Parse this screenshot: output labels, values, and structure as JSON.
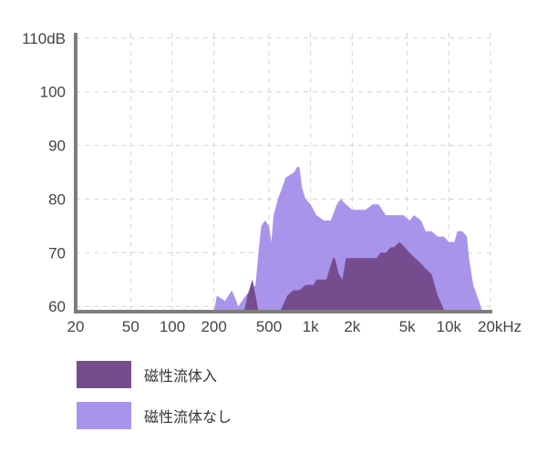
{
  "chart_data": {
    "type": "area",
    "x_scale": "log",
    "xlim": [
      20,
      20000
    ],
    "ylim": [
      59,
      111
    ],
    "y_ticks": [
      60,
      70,
      80,
      90,
      100,
      110
    ],
    "y_tick_labels": [
      "60",
      "70",
      "80",
      "90",
      "100",
      "110dB"
    ],
    "x_ticks": [
      20,
      50,
      100,
      200,
      500,
      1000,
      2000,
      5000,
      10000,
      20000
    ],
    "x_tick_labels": [
      "20",
      "50",
      "100",
      "200",
      "500",
      "1k",
      "2k",
      "5k",
      "10k",
      "20kHz"
    ],
    "grid": true,
    "legend_position": "bottom-left",
    "series": [
      {
        "name": "磁性流体なし",
        "color": "#a994ec",
        "points": [
          [
            200,
            59
          ],
          [
            210,
            62
          ],
          [
            240,
            61
          ],
          [
            270,
            63
          ],
          [
            300,
            60
          ],
          [
            340,
            62
          ],
          [
            400,
            64
          ],
          [
            420,
            70
          ],
          [
            440,
            75
          ],
          [
            470,
            76
          ],
          [
            500,
            75
          ],
          [
            520,
            72
          ],
          [
            540,
            77
          ],
          [
            580,
            80
          ],
          [
            620,
            82
          ],
          [
            660,
            84
          ],
          [
            760,
            85
          ],
          [
            800,
            86
          ],
          [
            830,
            86
          ],
          [
            870,
            82
          ],
          [
            920,
            80
          ],
          [
            1000,
            79
          ],
          [
            1100,
            77
          ],
          [
            1250,
            76
          ],
          [
            1400,
            76
          ],
          [
            1550,
            79
          ],
          [
            1650,
            80
          ],
          [
            1800,
            79
          ],
          [
            2000,
            78
          ],
          [
            2200,
            78
          ],
          [
            2500,
            78
          ],
          [
            2800,
            79
          ],
          [
            3100,
            79
          ],
          [
            3500,
            77
          ],
          [
            4000,
            77
          ],
          [
            4700,
            77
          ],
          [
            5200,
            76
          ],
          [
            5600,
            77
          ],
          [
            6300,
            76
          ],
          [
            6800,
            74
          ],
          [
            7500,
            74
          ],
          [
            8300,
            73
          ],
          [
            9200,
            73
          ],
          [
            10000,
            72
          ],
          [
            11000,
            72
          ],
          [
            11500,
            74
          ],
          [
            12500,
            74
          ],
          [
            13500,
            73
          ],
          [
            14000,
            69
          ],
          [
            15000,
            64
          ],
          [
            16500,
            61
          ],
          [
            17500,
            59
          ]
        ]
      },
      {
        "name": "磁性流体入",
        "color": "#774c8e",
        "points": [
          [
            330,
            59
          ],
          [
            350,
            62
          ],
          [
            380,
            65
          ],
          [
            400,
            62
          ],
          [
            420,
            59
          ],
          [
            600,
            59
          ],
          [
            680,
            62
          ],
          [
            750,
            63
          ],
          [
            830,
            63
          ],
          [
            920,
            64
          ],
          [
            1000,
            64
          ],
          [
            1050,
            64
          ],
          [
            1100,
            65
          ],
          [
            1200,
            65
          ],
          [
            1300,
            65
          ],
          [
            1450,
            69
          ],
          [
            1500,
            69
          ],
          [
            1600,
            66
          ],
          [
            1700,
            65
          ],
          [
            1800,
            69
          ],
          [
            2000,
            69
          ],
          [
            2300,
            69
          ],
          [
            2600,
            69
          ],
          [
            3000,
            69
          ],
          [
            3200,
            70
          ],
          [
            3500,
            70
          ],
          [
            3800,
            71
          ],
          [
            4000,
            71
          ],
          [
            4400,
            72
          ],
          [
            4800,
            71
          ],
          [
            5200,
            70
          ],
          [
            5700,
            69
          ],
          [
            6300,
            68
          ],
          [
            6800,
            67
          ],
          [
            7500,
            66
          ],
          [
            8300,
            62
          ],
          [
            9000,
            60
          ],
          [
            9300,
            59
          ]
        ]
      }
    ]
  }
}
